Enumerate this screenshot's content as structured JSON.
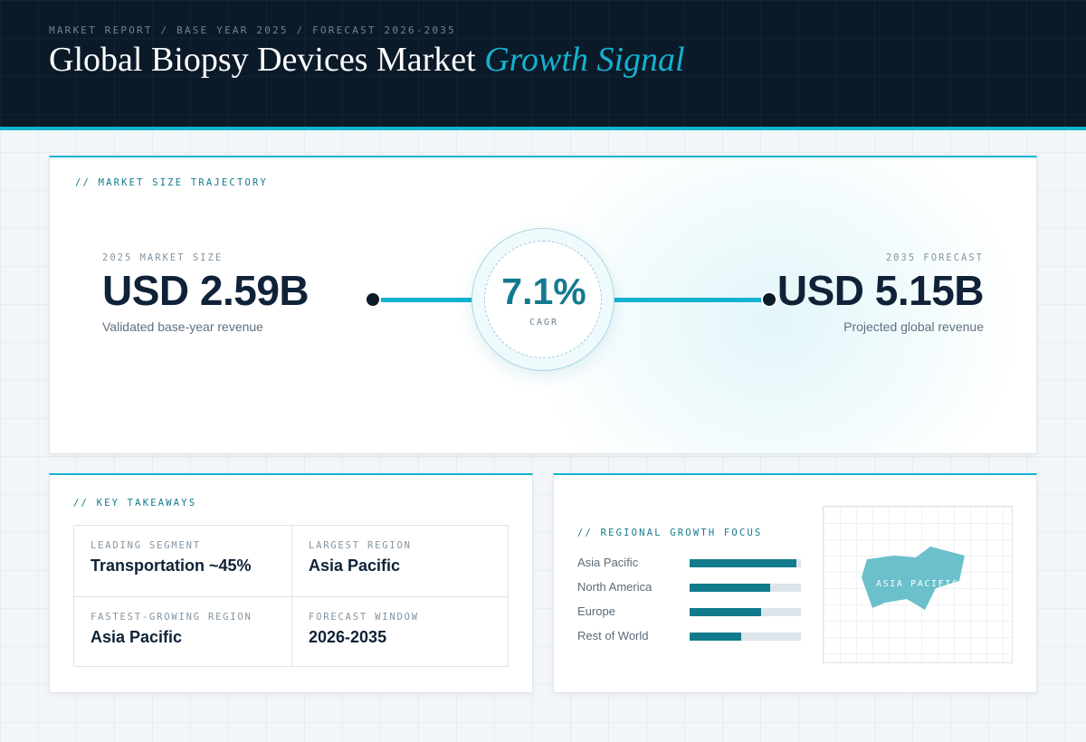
{
  "header": {
    "breadcrumb": "MARKET REPORT / BASE YEAR 2025 / FORECAST 2026-2035",
    "title_main": "Global Biopsy Devices Market",
    "title_accent": "Growth Signal"
  },
  "trajectory": {
    "section_label": "// MARKET SIZE TRAJECTORY",
    "base": {
      "eyebrow": "2025 MARKET SIZE",
      "value": "USD 2.59B",
      "note": "Validated base-year revenue"
    },
    "cagr": {
      "value": "7.1%",
      "label": "CAGR"
    },
    "forecast": {
      "eyebrow": "2035 FORECAST",
      "value": "USD 5.15B",
      "note": "Projected global revenue"
    }
  },
  "takeaways": {
    "section_label": "// KEY TAKEAWAYS",
    "items": [
      {
        "eyebrow": "LEADING SEGMENT",
        "value": "Transportation ~45%"
      },
      {
        "eyebrow": "LARGEST REGION",
        "value": "Asia Pacific"
      },
      {
        "eyebrow": "FASTEST-GROWING REGION",
        "value": "Asia Pacific"
      },
      {
        "eyebrow": "FORECAST WINDOW",
        "value": "2026-2035"
      }
    ]
  },
  "regional": {
    "section_label": "// REGIONAL GROWTH FOCUS",
    "regions": [
      {
        "name": "Asia Pacific",
        "share": 0.96
      },
      {
        "name": "North America",
        "share": 0.72
      },
      {
        "name": "Europe",
        "share": 0.64
      },
      {
        "name": "Rest of World",
        "share": 0.46
      }
    ],
    "map_label": "ASIA PACIFIC"
  },
  "colors": {
    "accent": "#12b3cf",
    "accent_dark": "#137a8e",
    "navy": "#0b1a28",
    "text_primary": "#0f2238"
  }
}
